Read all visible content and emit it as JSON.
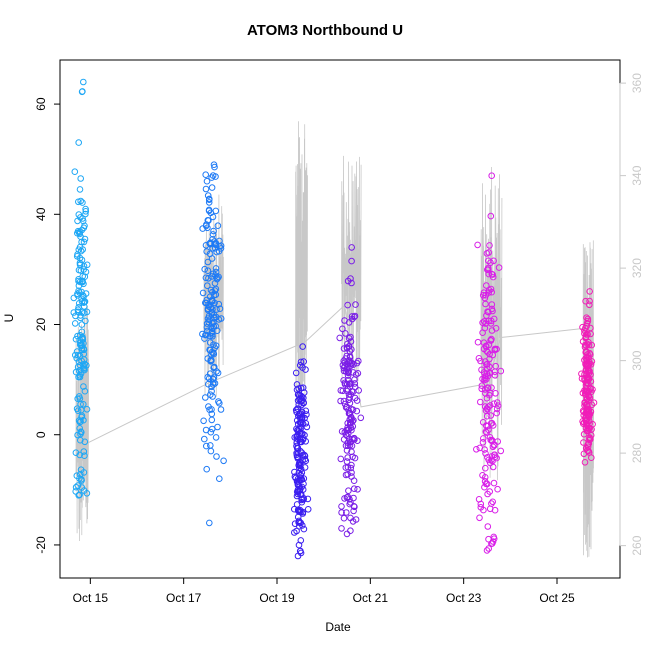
{
  "chart_data": {
    "type": "scatter",
    "title": "ATOM3 Northbound U",
    "xlabel": "Date",
    "ylabel": "U",
    "x_ticks": [
      "Oct 15",
      "Oct 17",
      "Oct 19",
      "Oct 21",
      "Oct 23",
      "Oct 25"
    ],
    "x_tick_values": [
      15,
      17,
      19,
      21,
      23,
      25
    ],
    "x_range": [
      14.35,
      26.35
    ],
    "ylim": [
      -26,
      68
    ],
    "y_ticks": [
      -20,
      0,
      20,
      40,
      60
    ],
    "y2lim": [
      253,
      365
    ],
    "y2_ticks": [
      260,
      280,
      300,
      320,
      340,
      360
    ],
    "grid": false,
    "legend": "none",
    "colors": {
      "series_palette": [
        "#1EA7F5",
        "#1E7AF5",
        "#3B1EF0",
        "#7A1EE6",
        "#D81EE8",
        "#F01EB8"
      ],
      "secondary_line": "#c8c8c8",
      "axis": "#000000",
      "secondary_axis": "#c8c8c8"
    },
    "clusters": [
      {
        "x_center": 14.8,
        "x_spread": 0.18,
        "u_center": 20,
        "u_low": -11,
        "u_high": 64,
        "u_max_point": 64,
        "color": "#1EA7F5",
        "secondary_low": 258,
        "secondary_high": 312
      },
      {
        "x_center": 17.6,
        "x_spread": 0.28,
        "u_center": 20,
        "u_low": -16,
        "u_high": 49,
        "u_max_point": 49,
        "color": "#1E7AF5",
        "secondary_low": 292,
        "secondary_high": 336
      },
      {
        "x_center": 19.5,
        "x_spread": 0.17,
        "u_center": -3,
        "u_low": -22,
        "u_high": 16,
        "u_max_point": 16,
        "color": "#3B1EF0",
        "secondary_low": 286,
        "secondary_high": 352
      },
      {
        "x_center": 20.55,
        "x_spread": 0.28,
        "u_center": 5,
        "u_low": -18,
        "u_high": 34,
        "u_max_point": 34,
        "color": "#7A1EE6",
        "secondary_low": 294,
        "secondary_high": 345
      },
      {
        "x_center": 23.55,
        "x_spread": 0.3,
        "u_center": 10,
        "u_low": -21,
        "u_high": 47,
        "u_max_point": 47,
        "color": "#D81EE8",
        "secondary_low": 273,
        "secondary_high": 342
      },
      {
        "x_center": 25.65,
        "x_spread": 0.15,
        "u_center": 8,
        "u_low": -5,
        "u_high": 26,
        "u_max_point": 26,
        "color": "#F01EB8",
        "secondary_low": 257,
        "secondary_high": 327
      }
    ],
    "secondary_connector": [
      {
        "x": 14.9,
        "y": 282
      },
      {
        "x": 17.5,
        "y": 295
      },
      {
        "x": 19.6,
        "y": 304
      },
      {
        "x": 20.45,
        "y": 312
      },
      {
        "x": 20.8,
        "y": 290
      },
      {
        "x": 23.5,
        "y": 295
      },
      {
        "x": 23.8,
        "y": 305
      },
      {
        "x": 25.6,
        "y": 307
      }
    ]
  }
}
